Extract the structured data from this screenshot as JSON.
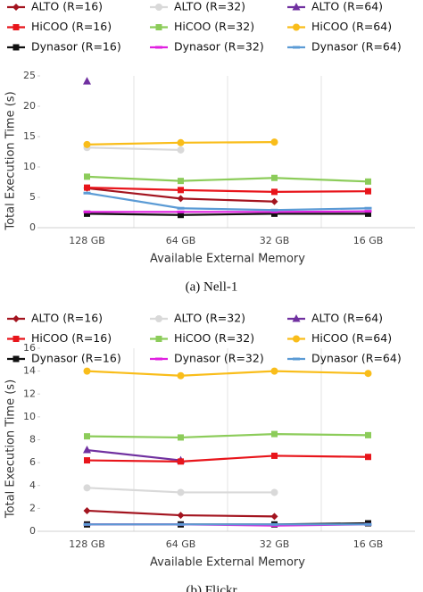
{
  "chart_data": [
    {
      "type": "line",
      "caption": "(a) Nell-1",
      "xlabel": "Available External Memory",
      "ylabel": "Total Execution Time (s)",
      "categories": [
        "128 GB",
        "64 GB",
        "32 GB",
        "16 GB"
      ],
      "ylim": [
        0,
        25
      ],
      "yticks": [
        0,
        5,
        10,
        15,
        20,
        25
      ],
      "legend": "top",
      "series": [
        {
          "name": "ALTO (R=16)",
          "color": "#a3141f",
          "marker": "diamond",
          "values": [
            6.5,
            4.8,
            4.3,
            null
          ]
        },
        {
          "name": "ALTO (R=32)",
          "color": "#d9d9d9",
          "marker": "circle",
          "values": [
            13.2,
            12.8,
            null,
            null
          ]
        },
        {
          "name": "ALTO (R=64)",
          "color": "#7030a0",
          "marker": "triangle",
          "values": [
            24.1,
            null,
            null,
            null
          ]
        },
        {
          "name": "HiCOO (R=16)",
          "color": "#e8151b",
          "marker": "square",
          "values": [
            6.6,
            6.2,
            5.9,
            6.0
          ]
        },
        {
          "name": "HiCOO (R=32)",
          "color": "#8ccc5a",
          "marker": "square",
          "values": [
            8.4,
            7.7,
            8.2,
            7.6
          ]
        },
        {
          "name": "HiCOO (R=64)",
          "color": "#f9bd1a",
          "marker": "circle",
          "values": [
            13.7,
            14.0,
            14.1,
            null
          ]
        },
        {
          "name": "Dynasor (R=16)",
          "color": "#111111",
          "marker": "square",
          "values": [
            2.3,
            2.1,
            2.3,
            2.3
          ]
        },
        {
          "name": "Dynasor (R=32)",
          "color": "#e020e0",
          "marker": "dash",
          "values": [
            2.6,
            2.6,
            2.6,
            2.7
          ]
        },
        {
          "name": "Dynasor (R=64)",
          "color": "#5b9bd5",
          "marker": "dash",
          "values": [
            5.7,
            3.2,
            2.9,
            3.2
          ]
        }
      ]
    },
    {
      "type": "line",
      "caption": "(b) Flickr",
      "xlabel": "Available External Memory",
      "ylabel": "Total Execution Time (s)",
      "categories": [
        "128 GB",
        "64 GB",
        "32 GB",
        "16 GB"
      ],
      "ylim": [
        0,
        16
      ],
      "yticks": [
        0,
        2,
        4,
        6,
        8,
        10,
        12,
        14,
        16
      ],
      "legend": "top",
      "series": [
        {
          "name": "ALTO (R=16)",
          "color": "#a3141f",
          "marker": "diamond",
          "values": [
            1.8,
            1.4,
            1.3,
            null
          ]
        },
        {
          "name": "ALTO (R=32)",
          "color": "#d9d9d9",
          "marker": "circle",
          "values": [
            3.8,
            3.4,
            3.4,
            null
          ]
        },
        {
          "name": "ALTO (R=64)",
          "color": "#7030a0",
          "marker": "triangle",
          "values": [
            7.1,
            6.2,
            null,
            null
          ]
        },
        {
          "name": "HiCOO (R=16)",
          "color": "#e8151b",
          "marker": "square",
          "values": [
            6.2,
            6.1,
            6.6,
            6.5
          ]
        },
        {
          "name": "HiCOO (R=32)",
          "color": "#8ccc5a",
          "marker": "square",
          "values": [
            8.3,
            8.2,
            8.5,
            8.4
          ]
        },
        {
          "name": "HiCOO (R=64)",
          "color": "#f9bd1a",
          "marker": "circle",
          "values": [
            14.0,
            13.6,
            14.0,
            13.8
          ]
        },
        {
          "name": "Dynasor (R=16)",
          "color": "#111111",
          "marker": "square",
          "values": [
            0.6,
            0.6,
            0.6,
            0.7
          ]
        },
        {
          "name": "Dynasor (R=32)",
          "color": "#e020e0",
          "marker": "dash",
          "values": [
            0.6,
            0.6,
            0.5,
            0.6
          ]
        },
        {
          "name": "Dynasor (R=64)",
          "color": "#5b9bd5",
          "marker": "dash",
          "values": [
            0.6,
            0.6,
            0.6,
            0.6
          ]
        }
      ]
    }
  ]
}
